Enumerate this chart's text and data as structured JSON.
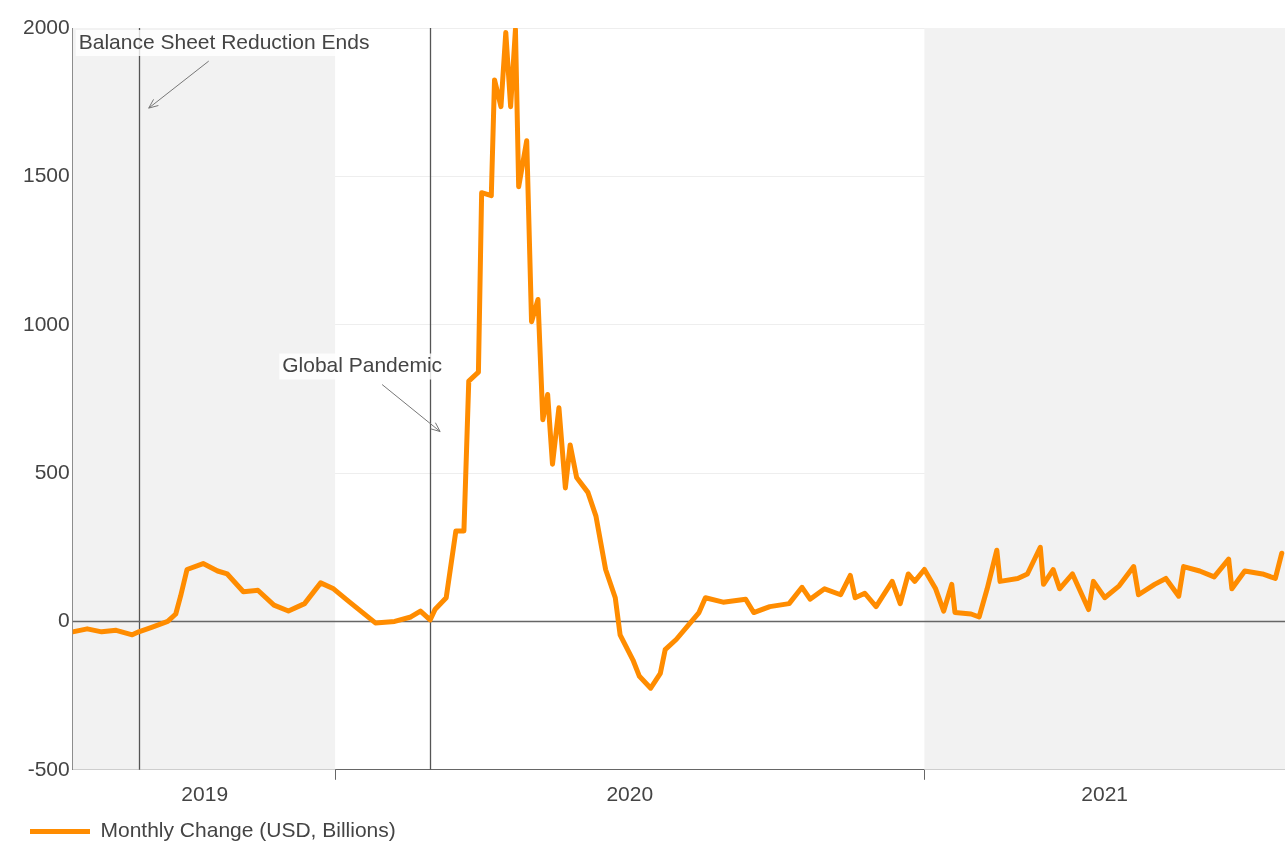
{
  "chart_data": {
    "type": "line",
    "xlim": [
      "2019-07-22",
      "2021-08-13"
    ],
    "ylim": [
      -500,
      2000
    ],
    "yticks": [
      -500,
      0,
      500,
      1000,
      1500,
      2000
    ],
    "xticks": [
      {
        "value": "2019-10-12",
        "label": "2019"
      },
      {
        "value": "2020-01-01",
        "label": null
      },
      {
        "value": "2020-07-02",
        "label": "2020"
      },
      {
        "value": "2021-01-01",
        "label": null
      },
      {
        "value": "2021-04-23",
        "label": "2021"
      }
    ],
    "grid": "y",
    "legend": "bottom left",
    "marker": "none",
    "line_style": "solid",
    "bands": [
      {
        "axis": "x",
        "from": "2019-07-22",
        "to": "2020-01-01",
        "color": "#f2f2f2"
      },
      {
        "axis": "x",
        "from": "2021-01-01",
        "to": "2021-08-13",
        "color": "#f2f2f2"
      }
    ],
    "ref_lines": [
      {
        "axis": "x",
        "value": "2019-09-01",
        "color": "#555555"
      },
      {
        "axis": "x",
        "value": "2020-02-29",
        "color": "#555555"
      },
      {
        "axis": "y",
        "value": 0,
        "color": "#666666"
      }
    ],
    "annotations": [
      {
        "text": "Balance Sheet Reduction Ends",
        "x": "2019-09-01",
        "y": 1730
      },
      {
        "text": "Global Pandemic",
        "x": "2020-02-29",
        "y": 640
      }
    ],
    "series": [
      {
        "name": "Monthly Change (USD, Billions)",
        "color": "#ff8c00",
        "x": [
          "2019-07-22",
          "2019-07-31",
          "2019-08-09",
          "2019-08-18",
          "2019-08-28",
          "2019-09-01",
          "2019-09-09",
          "2019-09-19",
          "2019-09-24",
          "2019-09-27",
          "2019-10-01",
          "2019-10-11",
          "2019-10-20",
          "2019-10-26",
          "2019-11-05",
          "2019-11-14",
          "2019-11-24",
          "2019-12-03",
          "2019-12-13",
          "2019-12-23",
          "2019-12-31",
          "2020-01-10",
          "2020-01-26",
          "2020-02-07",
          "2020-02-17",
          "2020-02-23",
          "2020-02-29",
          "2020-03-03",
          "2020-03-10",
          "2020-03-16",
          "2020-03-21",
          "2020-03-24",
          "2020-03-30",
          "2020-04-01",
          "2020-04-07",
          "2020-04-09",
          "2020-04-13",
          "2020-04-16",
          "2020-04-19",
          "2020-04-22",
          "2020-04-24",
          "2020-04-29",
          "2020-05-02",
          "2020-05-06",
          "2020-05-09",
          "2020-05-12",
          "2020-05-15",
          "2020-05-19",
          "2020-05-23",
          "2020-05-26",
          "2020-05-30",
          "2020-06-06",
          "2020-06-11",
          "2020-06-17",
          "2020-06-23",
          "2020-06-26",
          "2020-07-04",
          "2020-07-08",
          "2020-07-15",
          "2020-07-21",
          "2020-07-24",
          "2020-07-31",
          "2020-08-07",
          "2020-08-14",
          "2020-08-18",
          "2020-08-29",
          "2020-09-12",
          "2020-09-17",
          "2020-09-27",
          "2020-10-09",
          "2020-10-17",
          "2020-10-22",
          "2020-10-31",
          "2020-11-10",
          "2020-11-16",
          "2020-11-19",
          "2020-11-25",
          "2020-12-02",
          "2020-12-12",
          "2020-12-17",
          "2020-12-22",
          "2020-12-26",
          "2021-01-01",
          "2021-01-08",
          "2021-01-13",
          "2021-01-18",
          "2021-01-20",
          "2021-01-30",
          "2021-02-04",
          "2021-02-09",
          "2021-02-15",
          "2021-02-17",
          "2021-02-28",
          "2021-03-06",
          "2021-03-14",
          "2021-03-16",
          "2021-03-22",
          "2021-03-26",
          "2021-04-03",
          "2021-04-13",
          "2021-04-16",
          "2021-04-23",
          "2021-05-02",
          "2021-05-11",
          "2021-05-14",
          "2021-05-24",
          "2021-05-31",
          "2021-06-08",
          "2021-06-11",
          "2021-06-21",
          "2021-06-30",
          "2021-07-09",
          "2021-07-11",
          "2021-07-19",
          "2021-07-30",
          "2021-08-07",
          "2021-08-11"
        ],
        "values": [
          -35,
          -25,
          -35,
          -30,
          -45,
          -35,
          -20,
          0,
          25,
          85,
          175,
          195,
          170,
          160,
          100,
          105,
          55,
          35,
          60,
          130,
          110,
          65,
          -5,
          0,
          15,
          35,
          5,
          40,
          80,
          305,
          305,
          810,
          840,
          1445,
          1435,
          1825,
          1735,
          1985,
          1735,
          1995,
          1465,
          1620,
          1010,
          1085,
          680,
          765,
          530,
          720,
          450,
          595,
          485,
          435,
          355,
          175,
          80,
          -45,
          -130,
          -185,
          -225,
          -175,
          -95,
          -60,
          -15,
          30,
          80,
          65,
          75,
          30,
          50,
          60,
          115,
          75,
          110,
          90,
          155,
          80,
          95,
          50,
          135,
          60,
          160,
          135,
          175,
          110,
          35,
          125,
          30,
          25,
          15,
          110,
          240,
          135,
          145,
          160,
          250,
          125,
          175,
          110,
          160,
          40,
          135,
          80,
          120,
          185,
          90,
          125,
          145,
          85,
          185,
          170,
          150,
          210,
          110,
          170,
          160,
          145,
          230
        ]
      }
    ]
  }
}
